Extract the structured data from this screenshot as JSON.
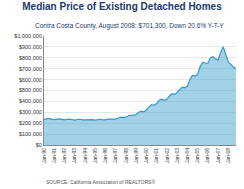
{
  "chart_data": {
    "type": "area",
    "title": "Median Price of Existing Detached Homes",
    "subtitle": "Contra Costa County, August 2008: $701,300, Down 20.6% Y-T-Y",
    "source": "SOURCE: California Association of REALTORS®",
    "color": "#3399cc",
    "grid": true,
    "categories": [
      "Jan-90",
      null,
      null,
      null,
      "Jan-91",
      null,
      null,
      null,
      "Jan-92",
      null,
      null,
      null,
      "Jan-93",
      null,
      null,
      null,
      "Jan-94",
      null,
      null,
      null,
      "Jan-95",
      null,
      null,
      null,
      "Jan-96",
      null,
      null,
      null,
      "Jan-97",
      null,
      null,
      null,
      "Jan-98",
      null,
      null,
      null,
      "Jan-99",
      null,
      null,
      null,
      "Jan-00",
      null,
      null,
      null,
      "Jan-01",
      null,
      null,
      null,
      "Jan-02",
      null,
      null,
      null,
      "Jan-03",
      null,
      null,
      null,
      "Jan-04",
      null,
      null,
      null,
      "Jan-05",
      null,
      null,
      null,
      "Jan-06",
      null,
      null,
      null,
      "Jan-07",
      null,
      null,
      null,
      "Jan-08",
      null,
      null,
      null
    ],
    "values": [
      235000,
      240000,
      245000,
      238000,
      232000,
      238000,
      240000,
      235000,
      230000,
      236000,
      238000,
      232000,
      228000,
      234000,
      236000,
      230000,
      230000,
      235000,
      236000,
      232000,
      228000,
      232000,
      235000,
      230000,
      230000,
      238000,
      240000,
      236000,
      238000,
      248000,
      255000,
      252000,
      255000,
      268000,
      275000,
      272000,
      280000,
      300000,
      310000,
      305000,
      320000,
      350000,
      370000,
      365000,
      380000,
      410000,
      420000,
      410000,
      420000,
      450000,
      470000,
      465000,
      480000,
      510000,
      530000,
      525000,
      540000,
      600000,
      640000,
      630000,
      650000,
      720000,
      760000,
      750000,
      750000,
      800000,
      810000,
      790000,
      780000,
      850000,
      900000,
      830000,
      760000,
      740000,
      715000,
      701300
    ],
    "ylim": [
      0,
      1000000
    ],
    "yticks": [
      {
        "value": 0,
        "label": "$0"
      },
      {
        "value": 100000,
        "label": "$100,000"
      },
      {
        "value": 200000,
        "label": "$200,000"
      },
      {
        "value": 300000,
        "label": "$300,000"
      },
      {
        "value": 400000,
        "label": "$400,000"
      },
      {
        "value": 500000,
        "label": "$500,000"
      },
      {
        "value": 600000,
        "label": "$600,000"
      },
      {
        "value": 700000,
        "label": "$700,000"
      },
      {
        "value": 800000,
        "label": "$800,000"
      },
      {
        "value": 900000,
        "label": "$900,000"
      },
      {
        "value": 1000000,
        "label": "$1,000,000"
      }
    ]
  }
}
